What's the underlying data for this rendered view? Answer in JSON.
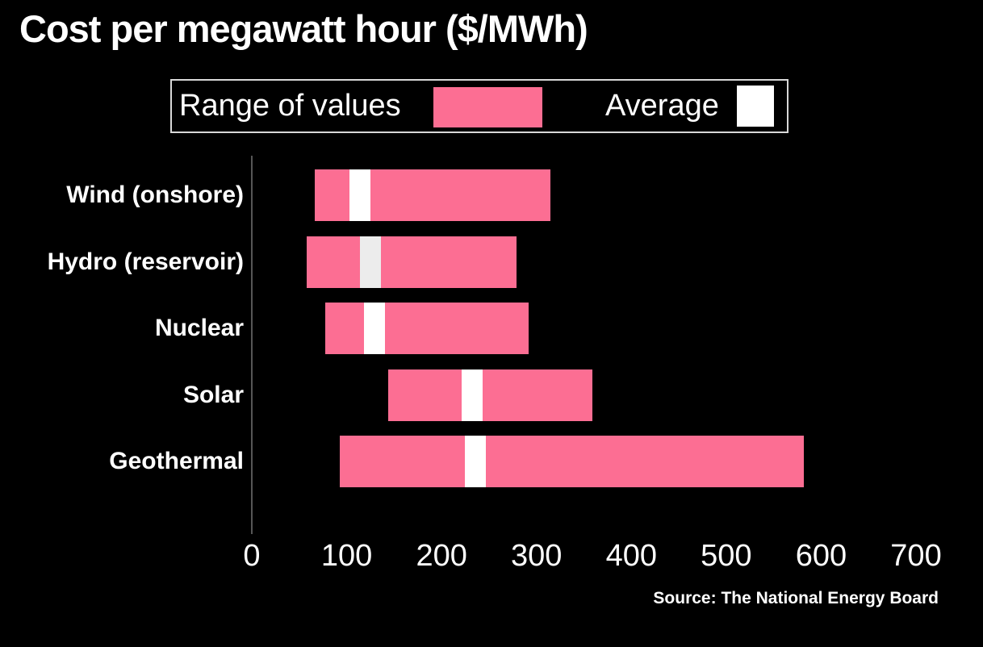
{
  "chart_data": {
    "type": "bar",
    "orientation": "horizontal",
    "title": "Cost per megawatt hour ($/MWh)",
    "source": "Source: The National Energy Board",
    "legend": {
      "range_label": "Range of values",
      "average_label": "Average"
    },
    "legend_position": "top",
    "grid": false,
    "xlim": [
      0,
      700
    ],
    "x_ticks": [
      0,
      100,
      200,
      300,
      400,
      500,
      600,
      700
    ],
    "categories": [
      "Wind (onshore)",
      "Hydro (reservoir)",
      "Nuclear",
      "Solar",
      "Geothermal"
    ],
    "series": [
      {
        "category": "Wind (onshore)",
        "range_min": 66,
        "range_max": 315,
        "average": 114,
        "marker_color": "#ffffff"
      },
      {
        "category": "Hydro (reservoir)",
        "range_min": 58,
        "range_max": 279,
        "average": 125,
        "marker_color": "#ececec"
      },
      {
        "category": "Nuclear",
        "range_min": 77,
        "range_max": 292,
        "average": 129,
        "marker_color": "#ffffff"
      },
      {
        "category": "Solar",
        "range_min": 144,
        "range_max": 359,
        "average": 232,
        "marker_color": "#ffffff"
      },
      {
        "category": "Geothermal",
        "range_min": 93,
        "range_max": 582,
        "average": 236,
        "marker_color": "#ffffff"
      }
    ]
  },
  "colors": {
    "background": "#000000",
    "bar_pink": "#fc6e93",
    "average_marker": "#ffffff",
    "text": "#ffffff",
    "axis_line": "#565656",
    "legend_border": "#d8d8d8"
  }
}
